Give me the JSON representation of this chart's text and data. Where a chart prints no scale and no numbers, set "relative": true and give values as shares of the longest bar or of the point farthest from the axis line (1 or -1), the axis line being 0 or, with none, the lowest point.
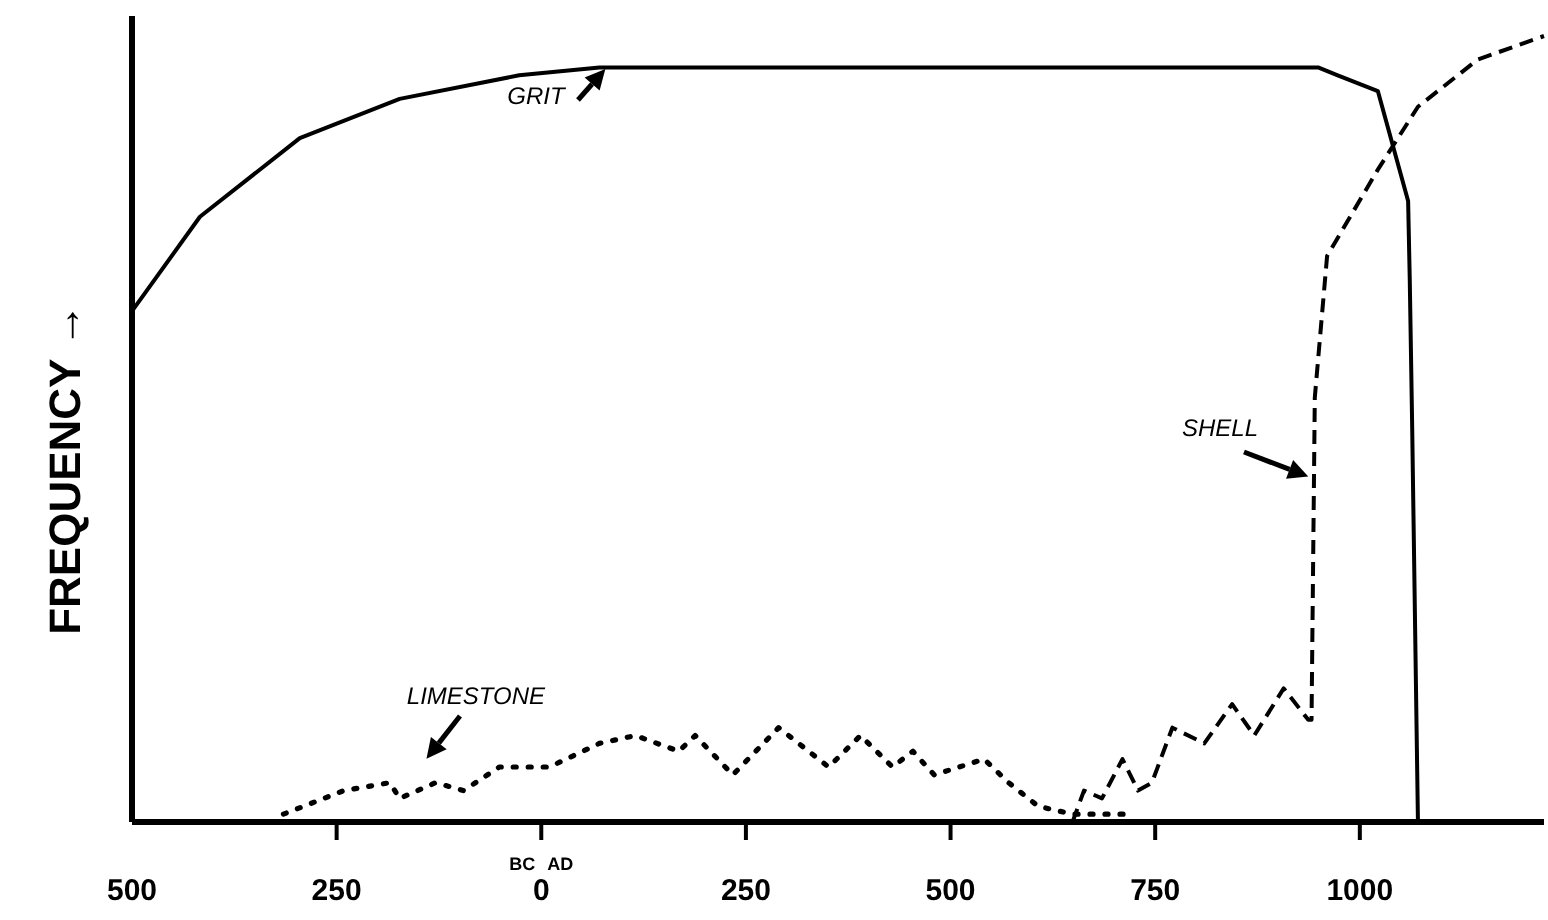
{
  "chart_data": {
    "type": "line",
    "relative": true,
    "ylabel": "FREQUENCY →",
    "xlim": [
      -500,
      1225
    ],
    "xticks": [
      {
        "value": -500,
        "label": "500"
      },
      {
        "value": -250,
        "label": "250"
      },
      0,
      250,
      500,
      750,
      1000
    ],
    "series": [
      {
        "color": "#000000",
        "line_style": "solid",
        "x": [
          -500,
          -417,
          -295,
          -173,
          -27,
          71,
          949,
          973,
          1022,
          1059,
          1061,
          1064,
          1071
        ],
        "values": [
          0.65,
          0.77,
          0.87,
          0.92,
          0.95,
          0.96,
          0.96,
          0.95,
          0.93,
          0.79,
          0.69,
          0.5,
          0
        ]
      },
      {
        "color": "#000000",
        "line_style": "dashed",
        "x": [
          649,
          663,
          685,
          710,
          729,
          746,
          771,
          810,
          844,
          871,
          907,
          937,
          941,
          945,
          960,
          1022,
          1071,
          1144,
          1225
        ],
        "values": [
          0,
          0.04,
          0.03,
          0.08,
          0.04,
          0.05,
          0.12,
          0.1,
          0.15,
          0.11,
          0.17,
          0.13,
          0.13,
          0.54,
          0.72,
          0.83,
          0.91,
          0.97,
          1
        ]
      },
      {
        "color": "#000000",
        "line_style": "dotted",
        "x": [
          -315,
          -241,
          -185,
          -173,
          -129,
          -95,
          -51,
          10,
          71,
          115,
          168,
          188,
          234,
          290,
          351,
          390,
          429,
          454,
          480,
          541,
          571,
          607,
          649,
          722
        ],
        "values": [
          0.01,
          0.04,
          0.05,
          0.03,
          0.05,
          0.04,
          0.07,
          0.07,
          0.1,
          0.11,
          0.09,
          0.11,
          0.06,
          0.12,
          0.07,
          0.11,
          0.07,
          0.09,
          0.06,
          0.08,
          0.05,
          0.02,
          0.01,
          0.01
        ]
      }
    ],
    "annotations": [
      "GRIT",
      "SHELL",
      "LIMESTONE",
      "BC",
      "AD"
    ]
  }
}
